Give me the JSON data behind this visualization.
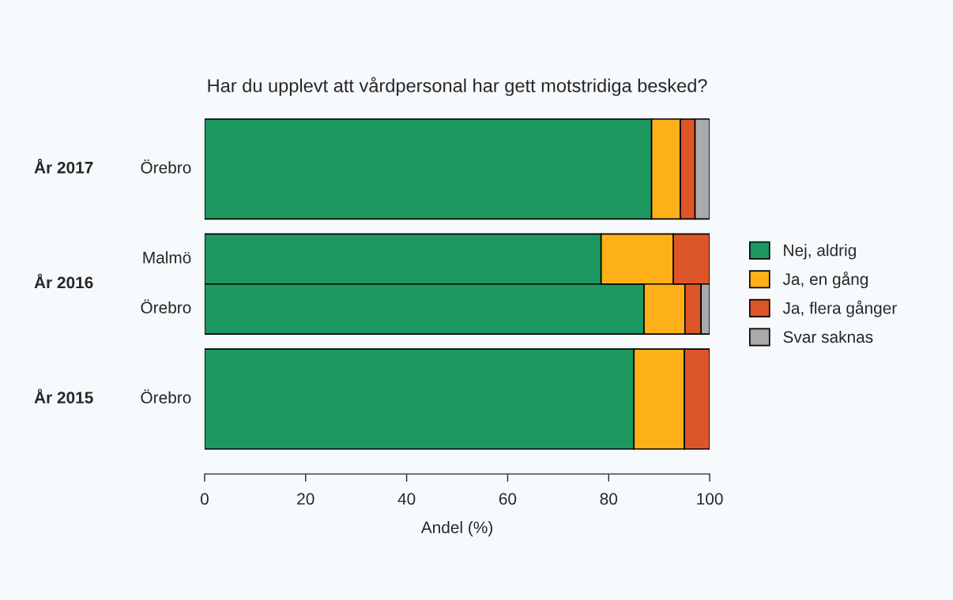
{
  "chart_data": {
    "type": "bar",
    "orientation": "horizontal",
    "stacked": true,
    "title": "Har du upplevt att vårdpersonal har gett motstridiga besked?",
    "xlabel": "Andel (%)",
    "categories": [
      "Örebro",
      "Malmö",
      "Örebro",
      "Örebro"
    ],
    "annotations": [
      "År 2017",
      "År 2016",
      "År 2015"
    ],
    "series": [
      {
        "name": "Nej, aldrig",
        "color": "#1d9860",
        "values": [
          88.5,
          78.5,
          87.0,
          85.0
        ]
      },
      {
        "name": "Ja, en gång",
        "color": "#fdb018",
        "values": [
          5.7,
          14.3,
          8.1,
          10.0
        ]
      },
      {
        "name": "Ja, flera gånger",
        "color": "#dc5627",
        "values": [
          2.9,
          7.2,
          3.2,
          5.0
        ]
      },
      {
        "name": "Svar saknas",
        "color": "#aaaaaa",
        "values": [
          2.9,
          null,
          1.7,
          null
        ]
      }
    ],
    "xlim": [
      0,
      100
    ],
    "xticks": [
      0,
      20,
      40,
      60,
      80,
      100
    ],
    "grid": false,
    "legend": "right"
  }
}
